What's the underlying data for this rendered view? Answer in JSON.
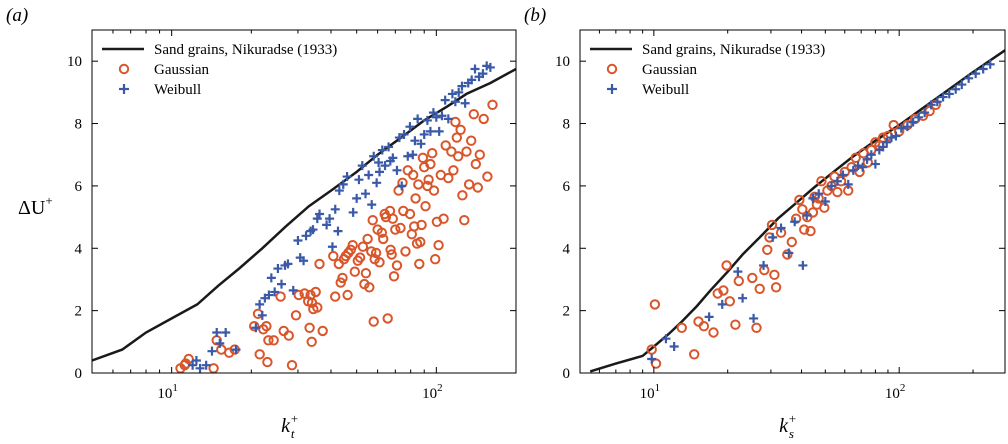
{
  "panels": [
    {
      "label": "(a)",
      "ylabel": "ΔU",
      "ylabel_sup": "+",
      "xlabel_main": "k",
      "xlabel_sub": "t",
      "xlabel_sup": "+"
    },
    {
      "label": "(b)",
      "ylabel": "",
      "ylabel_sup": "",
      "xlabel_main": "k",
      "xlabel_sub": "s",
      "xlabel_sup": "+"
    }
  ],
  "colors": {
    "line": "#1a1a1a",
    "gaussian": "#d9562a",
    "weibull": "#3a5aa8"
  },
  "chart_data": [
    {
      "type": "scatter",
      "xscale": "log",
      "xlim": [
        5,
        200
      ],
      "ylim": [
        0,
        11
      ],
      "xticks": [
        {
          "v": 10,
          "b": "10",
          "e": "1"
        },
        {
          "v": 100,
          "b": "10",
          "e": "2"
        }
      ],
      "yticks": [
        "0",
        "2",
        "4",
        "6",
        "8",
        "10"
      ],
      "grid": false,
      "legend": "top-left",
      "series": [
        {
          "name": "Sand grains, Nikuradse (1933)",
          "kind": "line",
          "x": [
            5,
            6.5,
            8,
            10,
            12.5,
            15,
            18,
            22,
            27,
            33,
            40,
            50,
            60,
            75,
            90,
            110,
            130,
            160,
            200
          ],
          "y": [
            0.4,
            0.75,
            1.3,
            1.75,
            2.2,
            2.8,
            3.35,
            4.0,
            4.7,
            5.35,
            5.85,
            6.45,
            7.0,
            7.6,
            8.1,
            8.55,
            8.95,
            9.3,
            9.75
          ]
        },
        {
          "name": "Gaussian",
          "kind": "circle",
          "x": [
            10.8,
            11.2,
            11.6,
            11.3,
            14.4,
            14.8,
            15.4,
            16.5,
            17.3,
            20.5,
            21.2,
            21.5,
            22.2,
            22.8,
            23.2,
            23.0,
            24.3,
            25.8,
            26.5,
            27.7,
            28.5,
            29.5,
            30.2,
            31.8,
            32.8,
            33.8,
            33.2,
            33.5,
            34.3,
            33.9,
            35.0,
            36.2,
            35.5,
            37.2,
            40.8,
            41.5,
            42.8,
            43.5,
            44.2,
            44.8,
            45.5,
            46.5,
            46.2,
            47.5,
            48.3,
            49.2,
            50.5,
            51.5,
            52.8,
            53.5,
            54.2,
            55.0,
            55.8,
            56.8,
            57.5,
            58.0,
            58.5,
            59.2,
            60.0,
            61.0,
            62.2,
            63.0,
            63.8,
            64.5,
            65.5,
            66.8,
            67.2,
            67.8,
            68.5,
            69.2,
            70.0,
            71.0,
            72.0,
            73.2,
            74.5,
            75.0,
            76.5,
            78.0,
            79.5,
            80.8,
            81.8,
            82.5,
            83.5,
            84.5,
            85.5,
            86.2,
            87.0,
            88.0,
            89.0,
            90.0,
            91.0,
            92.5,
            93.5,
            95.0,
            96.5,
            98.0,
            99.0,
            100.5,
            102.0,
            104.0,
            106.5,
            108.5,
            111.0,
            114.0,
            116.0,
            118.0,
            119.5,
            121.0,
            123.5,
            125.5,
            127.5,
            130.0,
            133.0,
            135.5,
            138.5,
            141.0,
            143.5,
            146.0,
            151.0,
            156.0,
            163.0
          ],
          "y": [
            0.15,
            0.25,
            0.45,
            0.3,
            0.15,
            1.05,
            0.75,
            0.65,
            0.75,
            1.5,
            1.9,
            0.6,
            1.4,
            1.5,
            1.05,
            0.35,
            1.05,
            2.45,
            1.35,
            1.2,
            0.25,
            1.85,
            2.5,
            2.55,
            2.3,
            1.0,
            1.45,
            2.5,
            2.05,
            2.25,
            2.6,
            3.5,
            2.1,
            1.35,
            3.75,
            2.45,
            3.5,
            2.9,
            3.05,
            3.65,
            3.75,
            3.85,
            2.5,
            3.95,
            4.1,
            3.25,
            3.6,
            3.7,
            4.05,
            2.85,
            3.2,
            4.3,
            2.75,
            3.9,
            4.9,
            1.65,
            3.65,
            3.85,
            4.6,
            3.55,
            4.5,
            4.3,
            5.1,
            5.0,
            1.75,
            5.2,
            3.95,
            3.8,
            4.95,
            3.1,
            4.6,
            3.45,
            5.85,
            4.65,
            6.1,
            5.2,
            3.9,
            6.5,
            5.1,
            4.45,
            6.35,
            4.7,
            5.6,
            4.15,
            6.05,
            3.5,
            4.2,
            4.75,
            6.9,
            6.6,
            5.35,
            6.0,
            6.2,
            6.7,
            7.05,
            5.85,
            3.65,
            4.85,
            4.1,
            6.35,
            4.95,
            7.3,
            6.25,
            7.1,
            6.5,
            8.05,
            7.55,
            6.95,
            7.8,
            5.7,
            4.9,
            7.1,
            6.05,
            7.45,
            8.3,
            6.7,
            5.95,
            7.0,
            8.15,
            6.3,
            8.6
          ]
        },
        {
          "name": "Weibull",
          "kind": "plus",
          "x": [
            12.0,
            12.4,
            12.8,
            13.5,
            14.2,
            14.8,
            15.2,
            16.0,
            17.5,
            20.8,
            21.5,
            22.0,
            22.5,
            23.3,
            23.8,
            24.5,
            25.2,
            26.0,
            26.8,
            27.5,
            28.8,
            30.0,
            30.6,
            31.5,
            32.2,
            33.5,
            34.2,
            35.5,
            36.2,
            38.5,
            39.5,
            40.5,
            41.5,
            42.5,
            43.0,
            44.5,
            46.0,
            48.5,
            50.0,
            51.0,
            52.5,
            54.0,
            55.5,
            57.0,
            58.0,
            59.5,
            60.5,
            61.0,
            62.5,
            64.0,
            66.0,
            67.0,
            68.5,
            71.0,
            72.5,
            74.0,
            75.5,
            78.0,
            79.5,
            81.5,
            83.0,
            85.0,
            87.5,
            90.0,
            92.5,
            95.0,
            97.5,
            100.0,
            102.5,
            105.0,
            108.0,
            111.0,
            115.0,
            118.0,
            121.5,
            125.0,
            128.5,
            132.0,
            136.0,
            140.0,
            145.0,
            150.0,
            155.0,
            160.0
          ],
          "y": [
            0.25,
            0.4,
            0.15,
            0.25,
            0.7,
            1.3,
            0.95,
            1.3,
            0.75,
            1.45,
            2.2,
            1.85,
            2.4,
            2.5,
            3.05,
            2.6,
            3.35,
            2.85,
            3.45,
            3.5,
            2.65,
            4.25,
            3.7,
            3.6,
            4.4,
            4.55,
            4.6,
            4.95,
            5.1,
            4.75,
            4.95,
            4.05,
            5.25,
            4.55,
            5.85,
            6.05,
            6.3,
            5.15,
            5.6,
            6.2,
            6.65,
            5.75,
            6.35,
            5.4,
            6.95,
            6.1,
            6.75,
            6.45,
            7.15,
            6.65,
            7.25,
            6.8,
            6.9,
            6.5,
            7.55,
            6.0,
            7.65,
            6.95,
            7.9,
            7.0,
            7.45,
            8.15,
            7.35,
            7.65,
            8.1,
            7.75,
            8.35,
            8.2,
            7.75,
            8.25,
            8.75,
            8.15,
            8.95,
            8.7,
            9.0,
            9.2,
            8.65,
            9.3,
            9.4,
            9.75,
            9.5,
            9.6,
            9.85,
            9.8
          ]
        }
      ]
    },
    {
      "type": "scatter",
      "xscale": "log",
      "xlim": [
        5,
        270
      ],
      "ylim": [
        0,
        11
      ],
      "xticks": [
        {
          "v": 10,
          "b": "10",
          "e": "1"
        },
        {
          "v": 100,
          "b": "10",
          "e": "2"
        }
      ],
      "yticks": [
        "0",
        "2",
        "4",
        "6",
        "8",
        "10"
      ],
      "grid": false,
      "legend": "top-left",
      "series": [
        {
          "name": "Sand grains, Nikuradse (1933)",
          "kind": "line",
          "x": [
            5.5,
            7,
            9,
            10,
            11.5,
            13,
            15,
            17,
            20,
            23,
            27,
            32,
            38,
            45,
            55,
            65,
            80,
            100,
            125,
            160,
            200,
            270
          ],
          "y": [
            0.05,
            0.3,
            0.55,
            0.85,
            1.25,
            1.65,
            2.15,
            2.65,
            3.25,
            3.8,
            4.35,
            4.95,
            5.45,
            5.95,
            6.5,
            6.95,
            7.45,
            7.95,
            8.5,
            9.1,
            9.65,
            10.35
          ]
        },
        {
          "name": "Gaussian",
          "kind": "circle",
          "x": [
            9.8,
            10.1,
            10.2,
            13.0,
            14.6,
            15.2,
            16.0,
            17.5,
            18.2,
            19.2,
            19.8,
            20.4,
            21.5,
            22.2,
            25.2,
            26.2,
            27.0,
            28.2,
            29.0,
            29.6,
            30.3,
            31.0,
            31.5,
            33.0,
            35.0,
            36.5,
            38.0,
            39.2,
            40.3,
            41.0,
            42.2,
            43.5,
            44.5,
            45.2,
            46.2,
            47.0,
            48.2,
            49.5,
            51.0,
            53.0,
            54.5,
            56.0,
            58.0,
            60.0,
            62.0,
            64.0,
            66.5,
            69.0,
            71.5,
            74.5,
            77.0,
            80.0,
            83.0,
            86.0,
            90.0,
            95.0,
            100.0,
            108.0,
            116.0,
            125.0,
            133.0,
            141.0
          ],
          "y": [
            0.75,
            2.2,
            0.3,
            1.45,
            0.6,
            1.65,
            1.5,
            1.3,
            2.55,
            2.65,
            3.45,
            2.3,
            1.55,
            2.95,
            3.05,
            1.45,
            2.7,
            3.3,
            3.95,
            4.35,
            4.75,
            3.15,
            2.75,
            4.5,
            3.8,
            4.2,
            4.95,
            5.55,
            5.25,
            4.6,
            5.0,
            4.55,
            5.15,
            5.65,
            5.4,
            5.6,
            6.15,
            5.3,
            5.85,
            6.0,
            6.3,
            5.8,
            6.15,
            6.45,
            5.85,
            6.6,
            6.9,
            6.45,
            7.05,
            6.75,
            7.15,
            7.4,
            7.3,
            7.55,
            7.6,
            7.95,
            7.75,
            7.95,
            8.15,
            8.25,
            8.4,
            8.6
          ]
        },
        {
          "name": "Weibull",
          "kind": "plus",
          "x": [
            9.8,
            11.2,
            12.1,
            16.8,
            19.0,
            22.0,
            23.0,
            25.5,
            28.0,
            30.5,
            33.0,
            35.5,
            37.5,
            40.5,
            42.0,
            44.5,
            47.0,
            50.0,
            53.0,
            56.0,
            59.0,
            62.0,
            65.0,
            68.0,
            71.0,
            74.0,
            77.0,
            80.0,
            83.0,
            86.0,
            89.0,
            93.0,
            97.0,
            102.0,
            108.0,
            114.0,
            120.0,
            127.0,
            135.0,
            143.0,
            151.0,
            160.0,
            170.0,
            180.0,
            192.0,
            205.0,
            220.0,
            235.0
          ],
          "y": [
            0.45,
            1.1,
            0.85,
            1.8,
            2.2,
            3.25,
            2.4,
            1.75,
            3.45,
            4.35,
            4.65,
            3.85,
            4.85,
            3.45,
            5.05,
            5.6,
            5.75,
            5.5,
            6.0,
            6.15,
            6.35,
            6.05,
            6.5,
            6.65,
            6.6,
            6.85,
            7.0,
            6.7,
            7.15,
            7.25,
            7.4,
            7.55,
            7.6,
            7.85,
            7.9,
            8.05,
            8.2,
            8.35,
            8.6,
            8.7,
            8.85,
            8.95,
            9.1,
            9.25,
            9.45,
            9.6,
            9.75,
            9.9
          ]
        }
      ]
    }
  ]
}
